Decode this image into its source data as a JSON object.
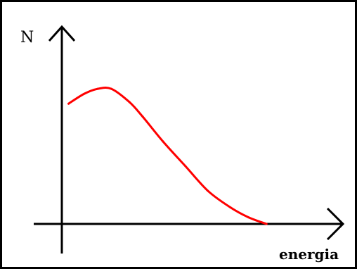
{
  "chart_data": {
    "type": "line",
    "ylabel": "N",
    "xlabel": "energia",
    "axis_ticks": false,
    "grid": false,
    "legend": "none",
    "curve_color": "#ff0000",
    "axis_color": "#000000",
    "xlim": [
      0,
      10
    ],
    "ylim": [
      0,
      10
    ],
    "series": [
      {
        "x": [
          0.3,
          1.0,
          1.6,
          2.2,
          3.0,
          3.6,
          4.5,
          5.5,
          6.5,
          7.5,
          8.3,
          9.1
        ],
        "y": [
          7.3,
          7.9,
          8.2,
          8.2,
          7.4,
          6.5,
          5.0,
          3.5,
          2.0,
          1.0,
          0.4,
          0.0
        ]
      }
    ]
  }
}
